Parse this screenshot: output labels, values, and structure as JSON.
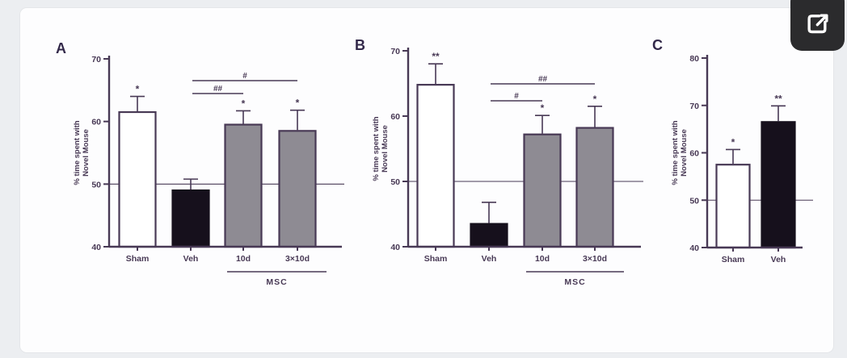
{
  "page": {
    "background": "#eceef1",
    "card_background": "#fdfdfe"
  },
  "toolbar": {
    "expand_button": {
      "icon": "external-link-icon",
      "background": "#2b2b2d",
      "icon_color": "#ffffff"
    }
  },
  "figure": {
    "ylabel_line1": "% time spent with",
    "ylabel_line2": "Novel Mouse",
    "colors": {
      "ink": "#483955",
      "white_bar": "#ffffff",
      "black_bar": "#16101c",
      "gray_bar": "#8e8b93"
    }
  },
  "chart_data": [
    {
      "type": "bar",
      "panel": "A",
      "title": "",
      "xlabel": "",
      "ylabel": "% time spent with Novel Mouse",
      "ylim": [
        40,
        70
      ],
      "yticks": [
        40,
        50,
        60,
        70
      ],
      "categories": [
        "Sham",
        "Veh",
        "10d",
        "3×10d"
      ],
      "values": [
        61.5,
        49,
        59.5,
        58.5
      ],
      "errors": [
        2.5,
        1.8,
        2.2,
        3.3
      ],
      "bar_fills": [
        "white",
        "black",
        "gray",
        "gray"
      ],
      "sig_above_bars": [
        "*",
        "",
        "*",
        "*"
      ],
      "reference_line": 50,
      "grid": false,
      "legend": false,
      "brackets": [
        {
          "from": "Veh",
          "to": "10d",
          "label": "##"
        },
        {
          "from": "Veh",
          "to": "3×10d",
          "label": "#"
        }
      ],
      "group_label": {
        "text": "MSC",
        "categories": [
          "10d",
          "3×10d"
        ]
      }
    },
    {
      "type": "bar",
      "panel": "B",
      "title": "",
      "xlabel": "",
      "ylabel": "% time spent with Novel Mouse",
      "ylim": [
        40,
        70
      ],
      "yticks": [
        40,
        50,
        60,
        70
      ],
      "categories": [
        "Sham",
        "Veh",
        "10d",
        "3×10d"
      ],
      "values": [
        64.8,
        43.5,
        57.2,
        58.2
      ],
      "errors": [
        3.2,
        3.3,
        2.9,
        3.3
      ],
      "bar_fills": [
        "white",
        "black",
        "gray",
        "gray"
      ],
      "sig_above_bars": [
        "**",
        "",
        "*",
        "*"
      ],
      "reference_line": 50,
      "grid": false,
      "legend": false,
      "brackets": [
        {
          "from": "Veh",
          "to": "10d",
          "label": "#"
        },
        {
          "from": "Veh",
          "to": "3×10d",
          "label": "##"
        }
      ],
      "group_label": {
        "text": "MSC",
        "categories": [
          "10d",
          "3×10d"
        ]
      }
    },
    {
      "type": "bar",
      "panel": "C",
      "title": "",
      "xlabel": "",
      "ylabel": "% time spent with Novel Mouse",
      "ylim": [
        40,
        80
      ],
      "yticks": [
        40,
        50,
        60,
        70,
        80
      ],
      "categories": [
        "Sham",
        "Veh"
      ],
      "values": [
        57.5,
        66.5
      ],
      "errors": [
        3.2,
        3.4
      ],
      "bar_fills": [
        "white",
        "black"
      ],
      "sig_above_bars": [
        "*",
        "**"
      ],
      "reference_line": 50,
      "grid": false,
      "legend": false,
      "brackets": [],
      "group_label": null
    }
  ]
}
